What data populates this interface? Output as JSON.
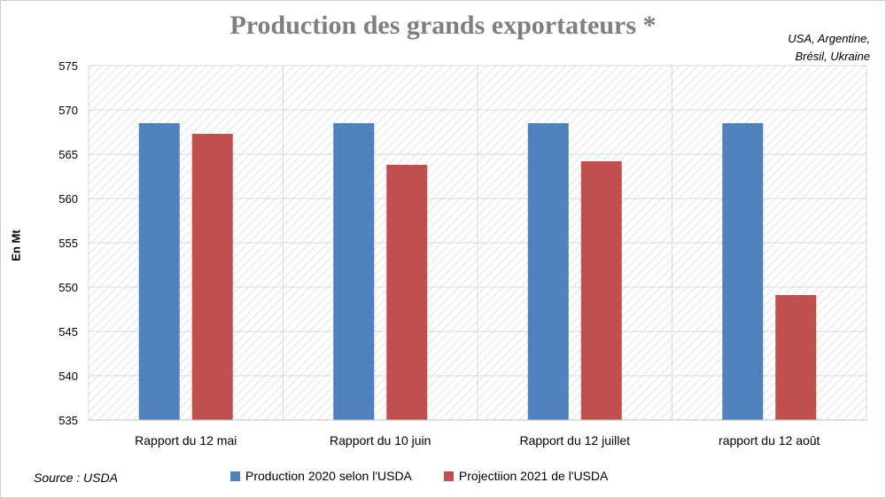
{
  "chart_data": {
    "type": "bar",
    "title": "Production des grands exportateurs *",
    "note_lines": [
      "USA, Argentine,",
      "Brésil, Ukraine"
    ],
    "ylabel": "En Mt",
    "xlabel": "",
    "ylim": [
      535,
      575
    ],
    "yticks": [
      535,
      540,
      545,
      550,
      555,
      560,
      565,
      570,
      575
    ],
    "categories": [
      "Rapport du 12 mai",
      "Rapport du 10 juin",
      "Rapport du 12 juillet",
      "rapport du 12 août"
    ],
    "series": [
      {
        "name": "Production 2020 selon l'USDA",
        "color": "#4f81bd",
        "values": [
          568.5,
          568.5,
          568.5,
          568.5
        ]
      },
      {
        "name": "Projectiion 2021 de l'USDA",
        "color": "#c0504d",
        "values": [
          567.3,
          563.8,
          564.2,
          549.1
        ]
      }
    ],
    "grid": true,
    "legend": "bottom"
  },
  "source": "Source : USDA"
}
